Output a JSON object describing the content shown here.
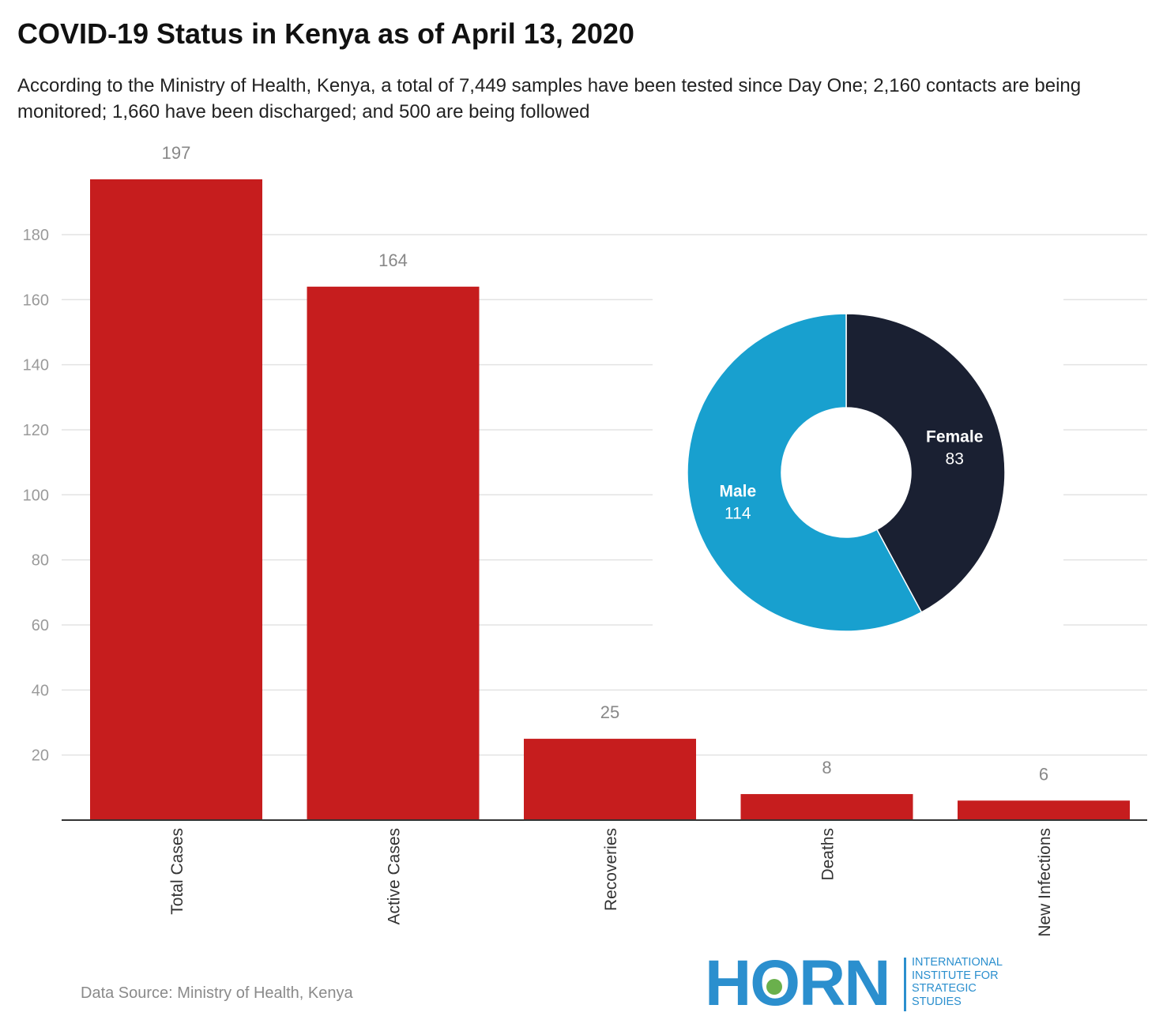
{
  "title": "COVID-19 Status in Kenya as of April 13, 2020",
  "subtitle": "According to the Ministry of Health, Kenya, a total of 7,449 samples have been tested since Day One;  2,160 contacts are being monitored; 1,660 have been discharged; and 500 are being followed",
  "source": "Data Source: Ministry of Health, Kenya",
  "logo": {
    "wordmark": "HORN",
    "lines": [
      "INTERNATIONAL",
      "INSTITUTE FOR",
      "STRATEGIC",
      "STUDIES"
    ],
    "color": "#2b8fce",
    "dot_color": "#6ab04c"
  },
  "chart_data": [
    {
      "type": "bar",
      "categories": [
        "Total Cases",
        "Active Cases",
        "Recoveries",
        "Deaths",
        "New Infections"
      ],
      "values": [
        197,
        164,
        25,
        8,
        6
      ],
      "value_labels": [
        "197",
        "164",
        "25",
        "8",
        "6"
      ],
      "yticks": [
        20,
        40,
        60,
        80,
        100,
        120,
        140,
        160,
        180
      ],
      "ytick_labels": [
        "20",
        "40",
        "60",
        "80",
        "100",
        "120",
        "140",
        "160",
        "180"
      ],
      "ylim": [
        0,
        197
      ],
      "grid": true,
      "bar_color": "#c61d1e",
      "xlabel": "",
      "ylabel": ""
    },
    {
      "type": "pie",
      "donut": true,
      "slices": [
        {
          "label": "Female",
          "value": 83,
          "value_label": "83",
          "color": "#1a2032"
        },
        {
          "label": "Male",
          "value": 114,
          "value_label": "114",
          "color": "#18a0cf"
        }
      ]
    }
  ]
}
